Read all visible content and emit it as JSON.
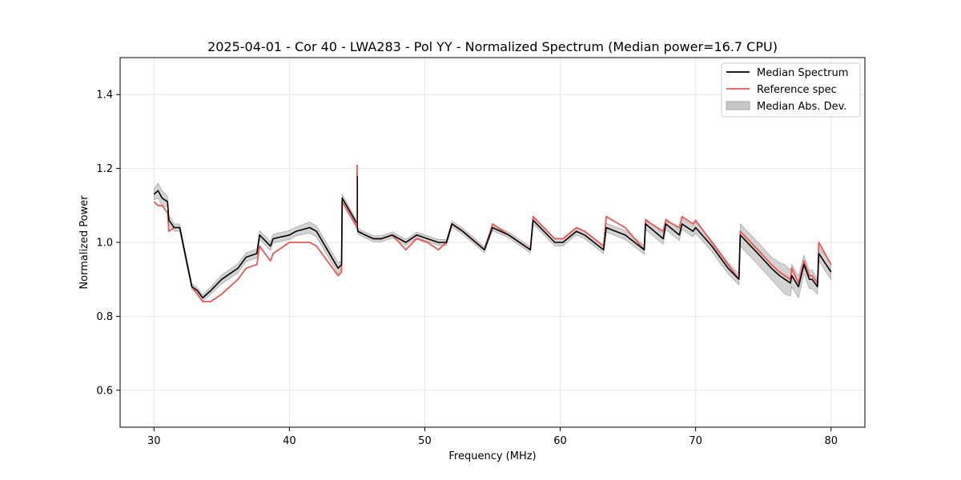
{
  "chart_data": {
    "type": "line",
    "title": "2025-04-01 - Cor 40 - LWA283 - Pol YY - Normalized Spectrum (Median power=16.7 CPU)",
    "xlabel": "Frequency (MHz)",
    "ylabel": "Normalized Power",
    "xlim": [
      27.5,
      82.5
    ],
    "ylim": [
      0.5,
      1.5
    ],
    "xticks": [
      30,
      40,
      50,
      60,
      70,
      80
    ],
    "yticks": [
      0.6,
      0.8,
      1.0,
      1.2,
      1.4
    ],
    "xtick_labels": [
      "30",
      "40",
      "50",
      "60",
      "70",
      "80"
    ],
    "ytick_labels": [
      "0.6",
      "0.8",
      "1.0",
      "1.2",
      "1.4"
    ],
    "grid": true,
    "legend_position": "top-right",
    "legend": [
      "Median Spectrum",
      "Reference spec",
      "Median Abs. Dev."
    ],
    "colors": {
      "median": "#000000",
      "reference": "#ee5555",
      "mad": "#c8c8c8",
      "mad_edge": "#9a9a9a",
      "grid": "#e6e6e6"
    },
    "series": [
      {
        "name": "Median Spectrum",
        "x": [
          30.0,
          30.3,
          30.6,
          31.0,
          31.1,
          31.5,
          31.9,
          32.4,
          32.8,
          33.2,
          33.6,
          34.2,
          35.0,
          36.2,
          36.8,
          37.6,
          37.8,
          38.6,
          38.8,
          40.0,
          40.5,
          41.5,
          42.0,
          43.6,
          43.85,
          43.9,
          45.0,
          45.05,
          45.6,
          46.2,
          46.8,
          47.6,
          48.6,
          49.4,
          50.2,
          51.0,
          51.6,
          52.0,
          52.8,
          54.4,
          54.5,
          55.0,
          56.2,
          57.0,
          57.8,
          58.0,
          59.6,
          60.2,
          61.2,
          61.8,
          63.2,
          63.4,
          64.8,
          66.2,
          66.3,
          67.6,
          67.8,
          68.8,
          69.0,
          69.8,
          70.0,
          71.2,
          72.4,
          73.2,
          73.3,
          74.6,
          75.6,
          76.2,
          76.6,
          77.0,
          77.1,
          77.6,
          78.0,
          78.4,
          78.6,
          79.0,
          79.1,
          80.0
        ],
        "values": [
          1.13,
          1.14,
          1.12,
          1.11,
          1.06,
          1.04,
          1.04,
          0.95,
          0.88,
          0.87,
          0.85,
          0.87,
          0.9,
          0.93,
          0.96,
          0.97,
          1.02,
          0.99,
          1.01,
          1.02,
          1.03,
          1.04,
          1.03,
          0.93,
          0.94,
          1.12,
          1.05,
          1.03,
          1.02,
          1.01,
          1.01,
          1.02,
          1.0,
          1.02,
          1.01,
          1.0,
          1.0,
          1.05,
          1.03,
          0.98,
          0.99,
          1.04,
          1.02,
          1.0,
          0.98,
          1.06,
          1.0,
          1.0,
          1.03,
          1.02,
          0.98,
          1.04,
          1.02,
          0.98,
          1.05,
          1.01,
          1.05,
          1.02,
          1.05,
          1.03,
          1.04,
          0.99,
          0.93,
          0.9,
          1.02,
          0.97,
          0.93,
          0.91,
          0.9,
          0.89,
          0.91,
          0.88,
          0.94,
          0.9,
          0.9,
          0.88,
          0.97,
          0.92
        ]
      },
      {
        "name": "Reference spec",
        "x": [
          30.0,
          30.3,
          30.6,
          31.0,
          31.1,
          31.5,
          31.9,
          32.4,
          32.8,
          33.2,
          33.6,
          34.2,
          35.0,
          36.2,
          36.8,
          37.6,
          37.8,
          38.6,
          38.8,
          40.0,
          40.5,
          41.5,
          42.0,
          43.6,
          43.85,
          43.9,
          45.0,
          45.05,
          45.6,
          46.2,
          46.8,
          47.6,
          48.6,
          49.4,
          50.2,
          51.0,
          51.6,
          52.0,
          52.8,
          54.4,
          54.5,
          55.0,
          56.2,
          57.0,
          57.8,
          58.0,
          59.6,
          60.2,
          61.2,
          61.8,
          63.2,
          63.4,
          64.8,
          66.2,
          66.3,
          67.6,
          67.8,
          68.8,
          69.0,
          69.8,
          70.0,
          71.2,
          72.4,
          73.2,
          73.3,
          74.6,
          75.6,
          76.2,
          76.6,
          77.0,
          77.1,
          77.6,
          78.0,
          78.4,
          78.6,
          79.0,
          79.1,
          80.0
        ],
        "values": [
          1.11,
          1.1,
          1.1,
          1.08,
          1.03,
          1.04,
          1.04,
          0.95,
          0.88,
          0.86,
          0.84,
          0.84,
          0.86,
          0.9,
          0.93,
          0.94,
          0.99,
          0.95,
          0.97,
          1.0,
          1.0,
          1.0,
          0.99,
          0.91,
          0.92,
          1.11,
          1.04,
          1.03,
          1.02,
          1.01,
          1.01,
          1.02,
          0.98,
          1.01,
          1.0,
          0.98,
          1.0,
          1.05,
          1.03,
          0.98,
          0.99,
          1.05,
          1.02,
          1.0,
          0.98,
          1.07,
          1.01,
          1.01,
          1.04,
          1.03,
          0.99,
          1.07,
          1.04,
          0.98,
          1.06,
          1.03,
          1.06,
          1.04,
          1.07,
          1.05,
          1.06,
          1.0,
          0.94,
          0.9,
          1.03,
          0.98,
          0.94,
          0.92,
          0.91,
          0.9,
          0.93,
          0.89,
          0.95,
          0.91,
          0.91,
          0.89,
          1.0,
          0.94
        ]
      }
    ],
    "mad_band": {
      "name": "Median Abs. Dev.",
      "x": [
        30.0,
        30.3,
        30.6,
        31.0,
        31.1,
        31.5,
        31.9,
        32.4,
        32.8,
        33.2,
        33.6,
        34.2,
        35.0,
        36.2,
        36.8,
        37.6,
        37.8,
        38.6,
        38.8,
        40.0,
        40.5,
        41.5,
        42.0,
        43.6,
        43.85,
        43.9,
        45.0,
        45.05,
        45.6,
        46.2,
        46.8,
        47.6,
        48.6,
        49.4,
        50.2,
        51.0,
        51.6,
        52.0,
        52.8,
        54.4,
        54.5,
        55.0,
        56.2,
        57.0,
        57.8,
        58.0,
        59.6,
        60.2,
        61.2,
        61.8,
        63.2,
        63.4,
        64.8,
        66.2,
        66.3,
        67.6,
        67.8,
        68.8,
        69.0,
        69.8,
        70.0,
        71.2,
        72.4,
        73.2,
        73.3,
        74.6,
        75.6,
        76.2,
        76.6,
        77.0,
        77.1,
        77.6,
        78.0,
        78.4,
        78.6,
        79.0,
        79.1,
        80.0
      ],
      "halfwidth": [
        0.015,
        0.02,
        0.02,
        0.015,
        0.012,
        0.01,
        0.01,
        0.01,
        0.008,
        0.008,
        0.008,
        0.01,
        0.012,
        0.012,
        0.012,
        0.012,
        0.012,
        0.012,
        0.012,
        0.012,
        0.012,
        0.015,
        0.015,
        0.015,
        0.01,
        0.01,
        0.008,
        0.008,
        0.008,
        0.008,
        0.008,
        0.008,
        0.008,
        0.008,
        0.008,
        0.008,
        0.008,
        0.008,
        0.008,
        0.008,
        0.008,
        0.008,
        0.008,
        0.008,
        0.008,
        0.01,
        0.01,
        0.01,
        0.01,
        0.01,
        0.01,
        0.012,
        0.012,
        0.012,
        0.015,
        0.015,
        0.015,
        0.015,
        0.015,
        0.015,
        0.015,
        0.015,
        0.015,
        0.015,
        0.03,
        0.03,
        0.03,
        0.035,
        0.04,
        0.035,
        0.03,
        0.03,
        0.025,
        0.025,
        0.025,
        0.02,
        0.02,
        0.02
      ]
    },
    "spike": {
      "x": 45.0,
      "reference_peak": 1.21,
      "median_peak": 1.18
    }
  }
}
